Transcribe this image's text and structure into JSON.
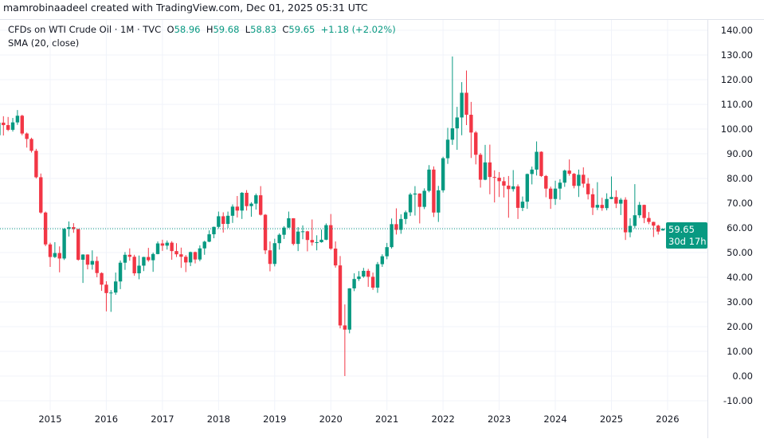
{
  "header": {
    "credit": "mamrobinaadeel created with TradingView.com, Dec 01, 2025 05:31 UTC"
  },
  "legend": {
    "symbol": "CFDs on WTI Crude Oil · 1M · TVC",
    "o_label": "O",
    "o": "58.96",
    "h_label": "H",
    "h": "59.68",
    "l_label": "L",
    "l": "58.83",
    "c_label": "C",
    "c": "59.65",
    "change": "+1.18 (+2.02%)",
    "indicator": "SMA (20, close)"
  },
  "price_label": {
    "price": "59.65",
    "countdown": "30d 17h"
  },
  "colors": {
    "up": "#089981",
    "down": "#f23645",
    "grid": "#f0f3fa",
    "text": "#131722"
  },
  "chart_data": {
    "type": "candlestick",
    "interval": "1M",
    "first_month": "2014-02",
    "ylim": [
      -15,
      145
    ],
    "y_ticks": [
      "140.00",
      "130.00",
      "120.00",
      "110.00",
      "100.00",
      "90.00",
      "80.00",
      "70.00",
      "60.00",
      "50.00",
      "40.00",
      "30.00",
      "20.00",
      "10.00",
      "0.00",
      "-10.00"
    ],
    "x_ticks": [
      "2015",
      "2016",
      "2017",
      "2018",
      "2019",
      "2020",
      "2021",
      "2022",
      "2023",
      "2024",
      "2025",
      "2026"
    ],
    "grid": true,
    "last_price": 59.65,
    "ohlc": [
      [
        97.5,
        103.5,
        97.4,
        102.6
      ],
      [
        102.6,
        105.2,
        97.4,
        101.6
      ],
      [
        101.6,
        104.9,
        99.2,
        99.7
      ],
      [
        99.7,
        104.5,
        99.0,
        102.7
      ],
      [
        102.7,
        107.7,
        101.7,
        105.4
      ],
      [
        105.4,
        105.8,
        97.5,
        98.2
      ],
      [
        98.2,
        98.6,
        92.5,
        96.0
      ],
      [
        96.0,
        96.5,
        90.5,
        91.2
      ],
      [
        91.2,
        92.0,
        80.0,
        80.5
      ],
      [
        80.5,
        82.0,
        65.7,
        66.2
      ],
      [
        66.2,
        66.6,
        52.6,
        53.3
      ],
      [
        53.3,
        54.0,
        44.2,
        48.2
      ],
      [
        48.2,
        54.2,
        47.8,
        49.8
      ],
      [
        49.8,
        52.5,
        42.0,
        47.6
      ],
      [
        47.6,
        59.9,
        47.0,
        59.6
      ],
      [
        59.6,
        62.6,
        56.5,
        60.3
      ],
      [
        60.3,
        61.9,
        58.0,
        59.5
      ],
      [
        59.5,
        59.6,
        46.7,
        47.1
      ],
      [
        47.1,
        49.3,
        37.7,
        49.2
      ],
      [
        49.2,
        49.3,
        43.2,
        45.1
      ],
      [
        45.1,
        50.9,
        43.1,
        46.6
      ],
      [
        46.6,
        48.4,
        40.0,
        41.7
      ],
      [
        41.7,
        42.0,
        34.5,
        37.0
      ],
      [
        37.0,
        38.4,
        26.2,
        33.6
      ],
      [
        33.6,
        34.8,
        26.0,
        33.8
      ],
      [
        33.8,
        41.9,
        32.9,
        38.3
      ],
      [
        38.3,
        46.8,
        35.2,
        45.9
      ],
      [
        45.9,
        50.2,
        43.0,
        49.1
      ],
      [
        49.1,
        51.7,
        46.7,
        48.3
      ],
      [
        48.3,
        49.1,
        40.6,
        41.6
      ],
      [
        41.6,
        48.8,
        39.2,
        44.7
      ],
      [
        44.7,
        48.3,
        42.5,
        48.2
      ],
      [
        48.2,
        51.9,
        46.3,
        46.9
      ],
      [
        46.9,
        50.0,
        42.2,
        49.4
      ],
      [
        49.4,
        54.5,
        49.3,
        53.7
      ],
      [
        53.7,
        55.2,
        50.7,
        52.8
      ],
      [
        52.8,
        54.9,
        51.2,
        54.0
      ],
      [
        54.0,
        54.6,
        47.1,
        50.6
      ],
      [
        50.6,
        53.8,
        48.2,
        49.3
      ],
      [
        49.3,
        52.0,
        43.8,
        48.3
      ],
      [
        48.3,
        49.0,
        42.1,
        46.0
      ],
      [
        46.0,
        50.4,
        44.5,
        50.2
      ],
      [
        50.2,
        50.4,
        45.6,
        47.2
      ],
      [
        47.2,
        52.9,
        46.5,
        51.7
      ],
      [
        51.7,
        54.8,
        49.1,
        54.4
      ],
      [
        54.4,
        59.0,
        54.2,
        57.4
      ],
      [
        57.4,
        60.5,
        55.8,
        60.4
      ],
      [
        60.4,
        66.6,
        59.8,
        64.7
      ],
      [
        64.7,
        66.3,
        58.1,
        61.6
      ],
      [
        61.6,
        66.6,
        59.9,
        64.9
      ],
      [
        64.9,
        69.5,
        62.0,
        68.6
      ],
      [
        68.6,
        72.9,
        64.2,
        67.0
      ],
      [
        67.0,
        74.5,
        63.6,
        74.2
      ],
      [
        74.2,
        75.3,
        67.0,
        68.8
      ],
      [
        68.8,
        70.4,
        64.5,
        69.8
      ],
      [
        69.8,
        73.9,
        67.4,
        73.2
      ],
      [
        73.2,
        76.9,
        65.0,
        65.3
      ],
      [
        65.3,
        65.6,
        49.4,
        50.9
      ],
      [
        50.9,
        54.5,
        42.4,
        45.4
      ],
      [
        45.4,
        55.6,
        44.4,
        53.8
      ],
      [
        53.8,
        57.8,
        51.2,
        57.2
      ],
      [
        57.2,
        60.7,
        55.5,
        60.1
      ],
      [
        60.1,
        66.6,
        59.9,
        63.9
      ],
      [
        63.9,
        63.9,
        52.9,
        53.5
      ],
      [
        53.5,
        60.3,
        50.6,
        58.5
      ],
      [
        58.5,
        61.0,
        55.4,
        58.6
      ],
      [
        58.6,
        58.8,
        50.5,
        55.1
      ],
      [
        55.1,
        63.4,
        52.8,
        54.1
      ],
      [
        54.1,
        57.0,
        50.9,
        54.2
      ],
      [
        54.2,
        59.3,
        54.0,
        55.2
      ],
      [
        55.2,
        61.8,
        55.0,
        61.1
      ],
      [
        61.1,
        65.6,
        51.1,
        51.6
      ],
      [
        51.6,
        54.5,
        43.9,
        44.8
      ],
      [
        44.8,
        48.6,
        19.3,
        20.5
      ],
      [
        20.5,
        29.0,
        0.0,
        18.8
      ],
      [
        18.8,
        35.6,
        17.3,
        35.5
      ],
      [
        35.5,
        41.6,
        34.4,
        39.3
      ],
      [
        39.3,
        42.5,
        38.5,
        40.3
      ],
      [
        40.3,
        43.8,
        39.8,
        42.6
      ],
      [
        42.6,
        43.4,
        36.1,
        40.2
      ],
      [
        40.2,
        41.9,
        34.9,
        35.8
      ],
      [
        35.8,
        46.2,
        33.7,
        45.3
      ],
      [
        45.3,
        49.3,
        44.2,
        48.5
      ],
      [
        48.5,
        53.9,
        47.3,
        52.2
      ],
      [
        52.2,
        63.8,
        51.6,
        61.5
      ],
      [
        61.5,
        67.9,
        57.3,
        59.2
      ],
      [
        59.2,
        65.5,
        57.6,
        63.6
      ],
      [
        63.6,
        67.0,
        61.5,
        66.3
      ],
      [
        66.3,
        74.2,
        64.8,
        73.5
      ],
      [
        73.5,
        76.9,
        65.0,
        73.9
      ],
      [
        73.9,
        74.0,
        61.8,
        68.5
      ],
      [
        68.5,
        76.0,
        67.6,
        75.0
      ],
      [
        75.0,
        85.4,
        74.4,
        83.6
      ],
      [
        83.6,
        84.9,
        64.4,
        66.2
      ],
      [
        66.2,
        77.0,
        62.4,
        75.2
      ],
      [
        75.2,
        88.8,
        74.3,
        88.2
      ],
      [
        88.2,
        100.5,
        85.9,
        95.7
      ],
      [
        95.7,
        129.4,
        93.6,
        100.3
      ],
      [
        100.3,
        109.0,
        91.6,
        104.7
      ],
      [
        104.7,
        119.0,
        97.5,
        114.7
      ],
      [
        114.7,
        123.7,
        101.6,
        105.8
      ],
      [
        105.8,
        111.0,
        88.3,
        98.6
      ],
      [
        98.6,
        99.2,
        85.7,
        89.6
      ],
      [
        89.6,
        90.3,
        76.3,
        79.5
      ],
      [
        79.5,
        93.6,
        79.3,
        86.5
      ],
      [
        86.5,
        93.7,
        73.6,
        80.6
      ],
      [
        80.6,
        83.3,
        70.3,
        80.3
      ],
      [
        80.3,
        82.6,
        72.5,
        78.9
      ],
      [
        78.9,
        80.6,
        72.3,
        77.1
      ],
      [
        77.1,
        81.0,
        64.1,
        75.7
      ],
      [
        75.7,
        83.4,
        74.7,
        76.8
      ],
      [
        76.8,
        77.6,
        63.6,
        68.1
      ],
      [
        68.1,
        72.7,
        66.8,
        70.6
      ],
      [
        70.6,
        82.0,
        67.7,
        81.8
      ],
      [
        81.8,
        84.8,
        77.6,
        83.6
      ],
      [
        83.6,
        95.0,
        81.2,
        90.8
      ],
      [
        90.8,
        91.0,
        80.6,
        81.0
      ],
      [
        81.0,
        81.4,
        72.4,
        75.9
      ],
      [
        75.9,
        76.7,
        67.7,
        71.7
      ],
      [
        71.7,
        79.1,
        69.3,
        75.9
      ],
      [
        75.9,
        79.7,
        71.4,
        78.3
      ],
      [
        78.3,
        83.6,
        76.6,
        83.2
      ],
      [
        83.2,
        87.7,
        81.1,
        81.9
      ],
      [
        81.9,
        82.2,
        76.0,
        77.0
      ],
      [
        77.0,
        83.6,
        72.5,
        81.5
      ],
      [
        81.5,
        84.5,
        76.3,
        77.9
      ],
      [
        77.9,
        80.2,
        71.5,
        73.6
      ],
      [
        73.6,
        76.0,
        65.2,
        68.2
      ],
      [
        68.2,
        78.5,
        67.2,
        69.3
      ],
      [
        69.3,
        72.2,
        66.9,
        68.0
      ],
      [
        68.0,
        74.0,
        67.1,
        71.7
      ],
      [
        71.7,
        80.8,
        71.6,
        72.5
      ],
      [
        72.5,
        75.2,
        68.0,
        69.8
      ],
      [
        69.8,
        72.1,
        65.2,
        71.4
      ],
      [
        71.4,
        72.4,
        55.1,
        58.2
      ],
      [
        58.2,
        63.9,
        56.2,
        60.8
      ],
      [
        60.8,
        77.7,
        59.8,
        65.1
      ],
      [
        65.1,
        70.5,
        64.0,
        69.3
      ],
      [
        69.3,
        69.4,
        61.9,
        64.0
      ],
      [
        64.0,
        66.4,
        61.5,
        62.4
      ],
      [
        62.4,
        62.5,
        56.3,
        60.9
      ],
      [
        60.9,
        61.3,
        57.3,
        58.5
      ],
      [
        58.96,
        59.68,
        58.83,
        59.65
      ]
    ]
  }
}
